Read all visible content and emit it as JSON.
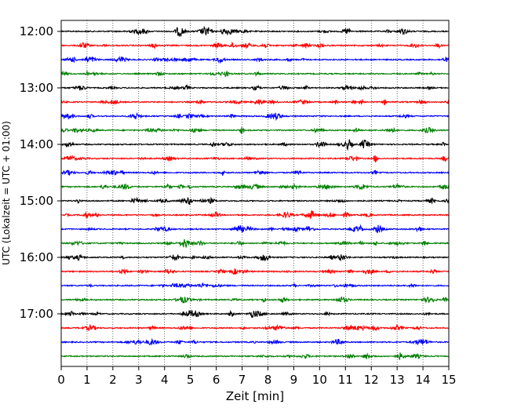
{
  "chart_data": {
    "type": "line",
    "title": "",
    "xlabel": "Zeit  [min]",
    "ylabel": "UTC (Lokalzeit = UTC + 01:00)",
    "xlim": [
      0,
      15
    ],
    "x_ticks": [
      "0",
      "1",
      "2",
      "3",
      "4",
      "5",
      "6",
      "7",
      "8",
      "9",
      "10",
      "11",
      "12",
      "13",
      "14",
      "15"
    ],
    "y_tick_labels": [
      "12:00",
      "13:00",
      "14:00",
      "15:00",
      "16:00",
      "17:00"
    ],
    "row_start": "12:00",
    "row_interval_minutes": 15,
    "row_count": 24,
    "color_cycle": [
      "#000000",
      "#ff0000",
      "#0000ff",
      "#008000"
    ],
    "grid": "vertical dotted at each minute",
    "legend": "none"
  }
}
